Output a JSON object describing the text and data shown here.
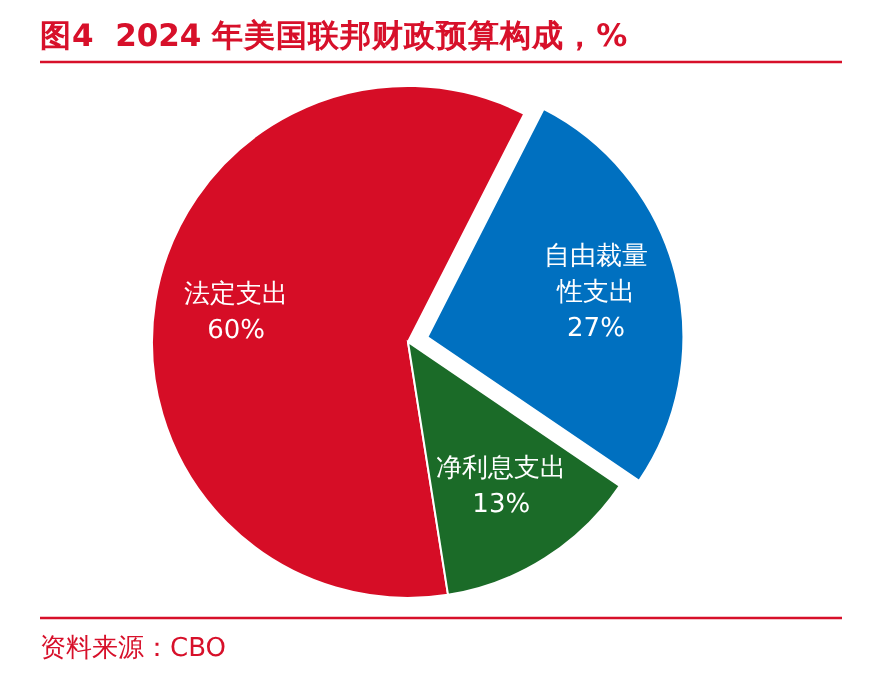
{
  "chart_data": {
    "type": "pie",
    "title": "图4  2024 年美国联邦财政预算构成，%",
    "categories": [
      "法定支出",
      "自由裁量性支出",
      "净利息支出"
    ],
    "values": [
      60,
      27,
      13
    ],
    "colors": [
      "#d60d26",
      "#0070c0",
      "#1b6b28"
    ],
    "value_labels": [
      "60%",
      "27%",
      "13%"
    ],
    "annotations": [
      "资料来源：CBO"
    ]
  }
}
